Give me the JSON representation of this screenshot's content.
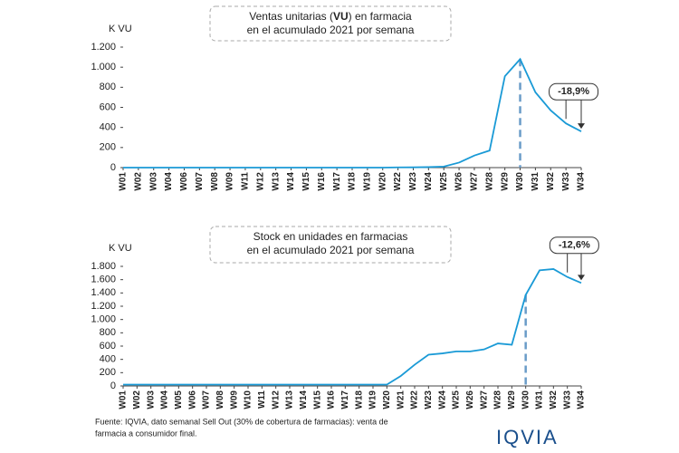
{
  "chart_data": [
    {
      "type": "line",
      "title": [
        [
          "Ventas unitarias (",
          "VU",
          ") en farmacia"
        ],
        [
          "en el acumulado 2021 por semana"
        ]
      ],
      "y_unit": "K VU",
      "categories": [
        "W01",
        "W02",
        "W03",
        "W04",
        "W06",
        "W07",
        "W08",
        "W09",
        "W11",
        "W12",
        "W13",
        "W14",
        "W15",
        "W16",
        "W17",
        "W18",
        "W19",
        "W20",
        "W22",
        "W23",
        "W24",
        "W25",
        "W26",
        "W27",
        "W28",
        "W29",
        "W30",
        "W31",
        "W32",
        "W33",
        "W34"
      ],
      "category_colors": [
        "#222",
        "#222",
        "#222",
        "#222",
        "#222",
        "#222",
        "#222",
        "#222",
        "#222",
        "#222",
        "#222",
        "#222",
        "#222",
        "#222",
        "#222",
        "#222",
        "#222",
        "#222",
        "#222",
        "#222",
        "#222",
        "#222",
        "#222",
        "#222",
        "#222",
        "#e8603c",
        "#e8603c",
        "#e8603c",
        "#e8603c",
        "#e8603c",
        "#e8603c"
      ],
      "series": [
        {
          "name": "Ventas unitarias",
          "color": "#1a9ad6",
          "values": [
            0,
            0,
            0,
            0,
            0,
            0,
            0,
            0,
            0,
            0,
            0,
            0,
            0,
            0,
            0,
            0,
            0,
            0,
            2,
            3,
            5,
            10,
            50,
            120,
            170,
            910,
            1080,
            750,
            570,
            440,
            360
          ]
        }
      ],
      "ylim": [
        0,
        1200
      ],
      "yticks": [
        0,
        200,
        400,
        600,
        800,
        {
          "value": 1000,
          "label": "1.000"
        },
        {
          "value": 1200,
          "label": "1.200"
        }
      ],
      "reference_line": {
        "category": "W30"
      },
      "annotation": "-18,9%"
    },
    {
      "type": "line",
      "title": [
        [
          "Stock en unidades en farmacias"
        ],
        [
          "en el acumulado 2021 por semana"
        ]
      ],
      "y_unit": "K VU",
      "categories": [
        "W01",
        "W02",
        "W03",
        "W04",
        "W05",
        "W06",
        "W07",
        "W08",
        "W09",
        "W10",
        "W11",
        "W12",
        "W13",
        "W14",
        "W15",
        "W16",
        "W17",
        "W18",
        "W19",
        "W20",
        "W21",
        "W22",
        "W23",
        "W24",
        "W25",
        "W26",
        "W27",
        "W28",
        "W29",
        "W30",
        "W31",
        "W32",
        "W33",
        "W34"
      ],
      "category_colors": [
        "#222",
        "#222",
        "#222",
        "#222",
        "#222",
        "#222",
        "#222",
        "#222",
        "#222",
        "#222",
        "#222",
        "#222",
        "#222",
        "#222",
        "#222",
        "#222",
        "#222",
        "#222",
        "#222",
        "#222",
        "#222",
        "#222",
        "#222",
        "#222",
        "#222",
        "#222",
        "#222",
        "#222",
        "#e8603c",
        "#e8603c",
        "#e8603c",
        "#e8603c",
        "#e8603c",
        "#e8603c"
      ],
      "series": [
        {
          "name": "Stock",
          "color": "#1a9ad6",
          "values": [
            20,
            20,
            20,
            20,
            20,
            20,
            20,
            20,
            20,
            20,
            20,
            20,
            20,
            20,
            20,
            20,
            20,
            20,
            20,
            20,
            150,
            320,
            470,
            490,
            520,
            520,
            550,
            640,
            620,
            1370,
            1740,
            1760,
            1640,
            1550
          ]
        }
      ],
      "ylim": [
        0,
        1800
      ],
      "yticks": [
        0,
        200,
        400,
        600,
        800,
        {
          "value": 1000,
          "label": "1.000"
        },
        {
          "value": 1200,
          "label": "1.200"
        },
        {
          "value": 1400,
          "label": "1.400"
        },
        {
          "value": 1600,
          "label": "1.600"
        },
        {
          "value": 1800,
          "label": "1.800"
        }
      ],
      "reference_line": {
        "category": "W30"
      },
      "annotation": "-12,6%"
    }
  ],
  "footer": {
    "source": [
      "Fuente: IQVIA, dato semanal Sell Out (30% de cobertura de farmacias): venta de",
      "farmacia a consumidor final."
    ],
    "logo": "IQVIA"
  }
}
